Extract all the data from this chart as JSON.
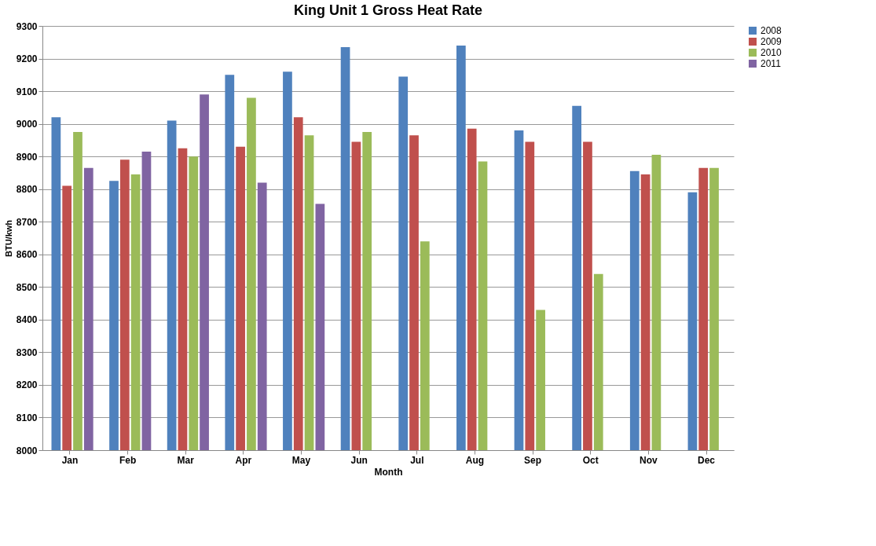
{
  "chart_data": {
    "type": "bar",
    "title": "King Unit 1 Gross Heat Rate",
    "xlabel": "Month",
    "ylabel": "BTU/kwh",
    "categories": [
      "Jan",
      "Feb",
      "Mar",
      "Apr",
      "May",
      "Jun",
      "Jul",
      "Aug",
      "Sep",
      "Oct",
      "Nov",
      "Dec"
    ],
    "series": [
      {
        "name": "2008",
        "color": "#4f81bd",
        "values": [
          9020,
          8825,
          9010,
          9150,
          9160,
          9235,
          9145,
          9240,
          8980,
          9055,
          8855,
          8790
        ]
      },
      {
        "name": "2009",
        "color": "#c0504d",
        "values": [
          8810,
          8890,
          8925,
          8930,
          9020,
          8945,
          8965,
          8985,
          8945,
          8945,
          8845,
          8865
        ]
      },
      {
        "name": "2010",
        "color": "#9bbb59",
        "values": [
          8975,
          8845,
          8900,
          9080,
          8965,
          8975,
          8640,
          8885,
          8430,
          8540,
          8905,
          8865
        ]
      },
      {
        "name": "2011",
        "color": "#8064a2",
        "values": [
          8865,
          8915,
          9090,
          8820,
          8755,
          null,
          null,
          null,
          null,
          null,
          null,
          null
        ]
      }
    ],
    "ylim": [
      8000,
      9300
    ],
    "yticks": [
      8000,
      8100,
      8200,
      8300,
      8400,
      8500,
      8600,
      8700,
      8800,
      8900,
      9000,
      9100,
      9200,
      9300
    ],
    "grid": "y",
    "legend": "right"
  }
}
